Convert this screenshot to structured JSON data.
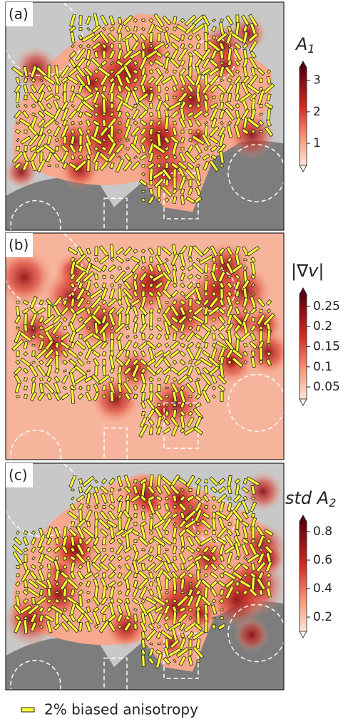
{
  "panels": [
    {
      "label": "(a)",
      "colorbar": {
        "title": "A",
        "title_sub": "1",
        "lim": [
          0.3,
          3.4
        ],
        "ticks": [
          1,
          2,
          3
        ]
      }
    },
    {
      "label": "(b)",
      "colorbar": {
        "title": "|∇v|",
        "lim": [
          0.02,
          0.28
        ],
        "ticks": [
          0.05,
          0.1,
          0.15,
          0.2,
          0.25
        ]
      }
    },
    {
      "label": "(c)",
      "colorbar": {
        "title": "std A",
        "title_sub": "2",
        "lim": [
          0.1,
          0.87
        ],
        "ticks": [
          0.2,
          0.4,
          0.6,
          0.8
        ]
      }
    }
  ],
  "legend": {
    "label": "2% biased anisotropy"
  }
}
